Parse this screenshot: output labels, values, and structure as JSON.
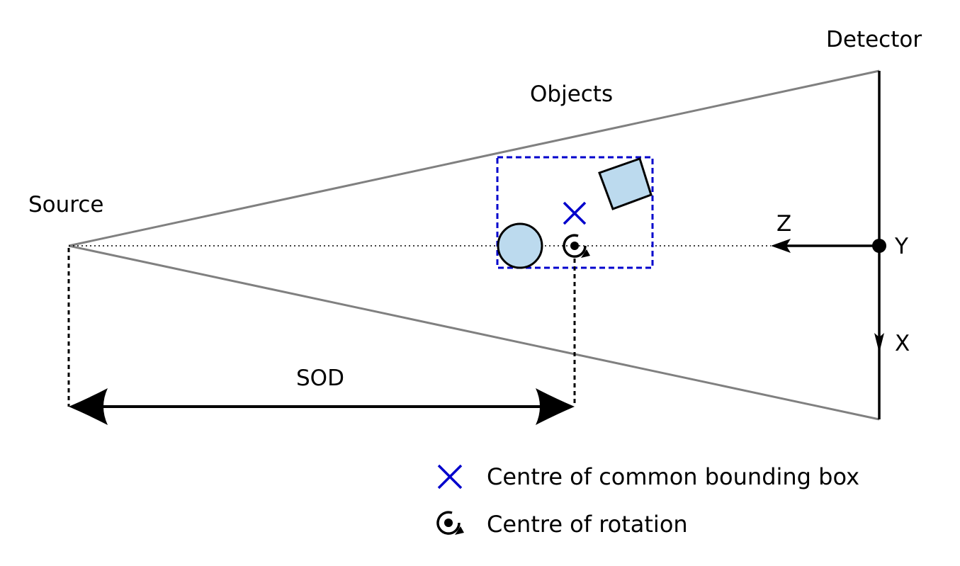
{
  "labels": {
    "detector": "Detector",
    "objects": "Objects",
    "source": "Source",
    "sod": "SOD",
    "axis_z": "Z",
    "axis_y": "Y",
    "axis_x": "X"
  },
  "legend": {
    "bbox_centre": "Centre of common bounding box",
    "rotation_centre": "Centre of rotation"
  },
  "colors": {
    "beam": "#808080",
    "bbox": "#0000cc",
    "object_fill": "#bcdaee",
    "outline": "#000000"
  },
  "icons": {
    "bbox_centre": "blue-cross-icon",
    "rotation_centre": "rotation-icon"
  }
}
